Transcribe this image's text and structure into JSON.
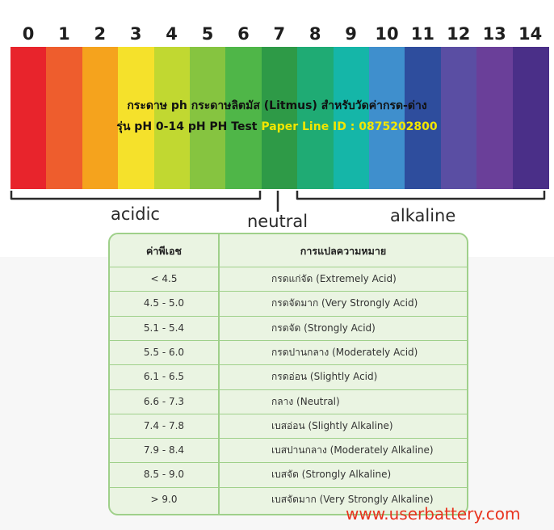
{
  "scale": {
    "numbers": [
      "0",
      "1",
      "2",
      "3",
      "4",
      "5",
      "6",
      "7",
      "8",
      "9",
      "10",
      "11",
      "12",
      "13",
      "14"
    ],
    "colors": [
      "#e8242c",
      "#ee5d2d",
      "#f5a31d",
      "#f5e12b",
      "#c1d831",
      "#86c440",
      "#4fb648",
      "#2e9a47",
      "#1fab74",
      "#15b6a8",
      "#3f8fcd",
      "#2e4d9d",
      "#5a4ea3",
      "#6a3f99",
      "#4a2f88"
    ]
  },
  "title": {
    "line1": "กระดาษ ph กระดาษลิตมัส (Litmus) สำหรับวัดค่ากรด-ด่าง",
    "line2_prefix": "รุ่น pH 0-14 pH PH Test",
    "line2_highlight": "Paper Line ID : 0875202800"
  },
  "labels": {
    "acidic": "acidic",
    "neutral": "neutral",
    "alkaline": "alkaline"
  },
  "table": {
    "headers": [
      "ค่าพีเอช",
      "การแปลความหมาย"
    ],
    "rows": [
      {
        "range": "< 4.5",
        "meaning": "กรดแก่จัด (Extremely Acid)"
      },
      {
        "range": "4.5 - 5.0",
        "meaning": "กรดจัดมาก (Very Strongly Acid)"
      },
      {
        "range": "5.1 - 5.4",
        "meaning": "กรดจัด (Strongly Acid)"
      },
      {
        "range": "5.5 - 6.0",
        "meaning": "กรดปานกลาง (Moderately Acid)"
      },
      {
        "range": "6.1 - 6.5",
        "meaning": "กรดอ่อน (Slightly Acid)"
      },
      {
        "range": "6.6 - 7.3",
        "meaning": "กลาง (Neutral)"
      },
      {
        "range": "7.4 - 7.8",
        "meaning": "เบสอ่อน (Slightly Alkaline)"
      },
      {
        "range": "7.9 - 8.4",
        "meaning": "เบสปานกลาง (Moderately Alkaline)"
      },
      {
        "range": "8.5 - 9.0",
        "meaning": "เบสจัด (Strongly Alkaline)"
      },
      {
        "range": "> 9.0",
        "meaning": "เบสจัดมาก (Very Strongly Alkaline)"
      }
    ]
  },
  "watermark": "www.userbattery.com"
}
